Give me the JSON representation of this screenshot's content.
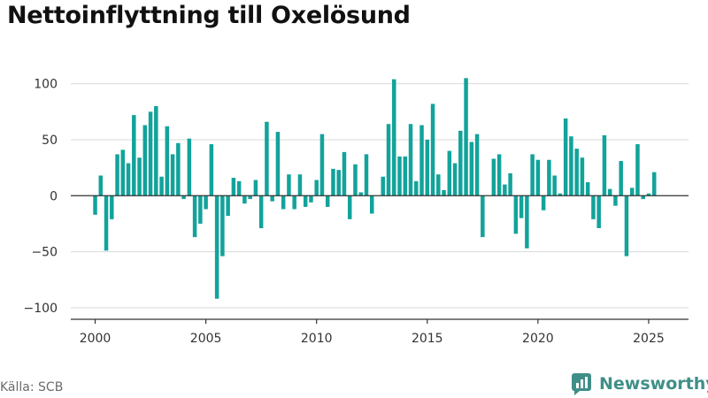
{
  "title": "Nettoinflyttning till Oxelösund",
  "source": "Källa: SCB",
  "brand": {
    "name": "Newsworthy",
    "icon": "newsworthy-logo-icon",
    "color": "#3f8f88"
  },
  "colors": {
    "bar": "#12a39b",
    "grid": "#d9d9d9",
    "zero_line": "#333333",
    "axis": "#333333",
    "tick_text": "#333333"
  },
  "chart_data": {
    "type": "bar",
    "title": "Nettoinflyttning till Oxelösund",
    "xlabel": "",
    "ylabel": "",
    "x_start_year": 2000,
    "periods_per_year": 4,
    "x_tick_labels": [
      "2000",
      "2005",
      "2010",
      "2015",
      "2020",
      "2025"
    ],
    "x_range": [
      1998.9,
      2026.8
    ],
    "y_ticks": [
      -100,
      -50,
      0,
      50,
      100
    ],
    "y_tick_labels": [
      "−100",
      "−50",
      "0",
      "50",
      "100"
    ],
    "ylim": [
      -108,
      110
    ],
    "grid": true,
    "legend": "none",
    "values": [
      -17,
      18,
      -49,
      -21,
      37,
      41,
      29,
      72,
      34,
      63,
      75,
      80,
      17,
      62,
      37,
      47,
      -3,
      51,
      -37,
      -25,
      -12,
      46,
      -92,
      -54,
      -18,
      16,
      13,
      -7,
      -3,
      14,
      -29,
      66,
      -5,
      57,
      -12,
      19,
      -12,
      19,
      -10,
      -6,
      14,
      55,
      -10,
      24,
      23,
      39,
      -21,
      28,
      3,
      37,
      -16,
      0,
      17,
      64,
      104,
      35,
      35,
      64,
      13,
      63,
      50,
      82,
      19,
      5,
      40,
      29,
      58,
      105,
      48,
      55,
      -37,
      0,
      33,
      37,
      10,
      20,
      -34,
      -20,
      -47,
      37,
      32,
      -13,
      32,
      18,
      2,
      69,
      53,
      42,
      34,
      12,
      -21,
      -29,
      54,
      6,
      -9,
      31,
      -54,
      7,
      46,
      -3,
      2,
      21
    ]
  }
}
